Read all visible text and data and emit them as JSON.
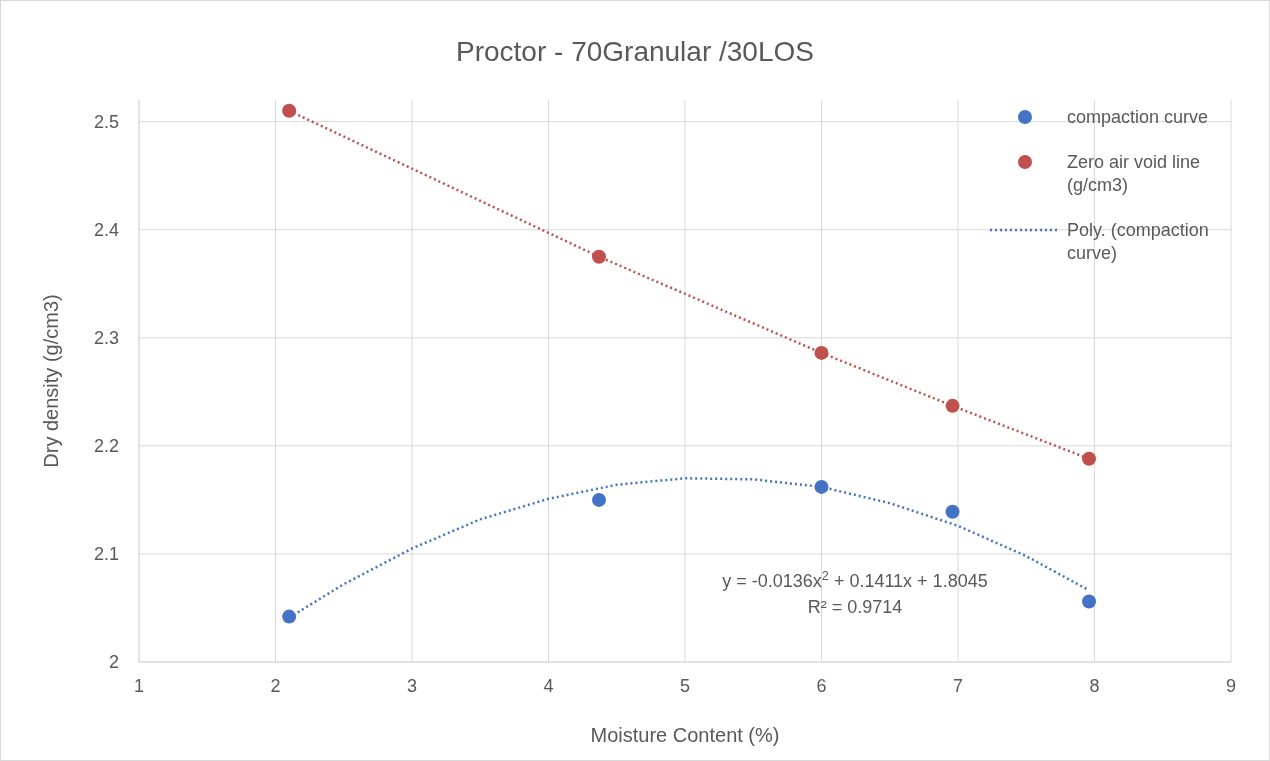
{
  "chart_data": {
    "type": "scatter",
    "title": "Proctor - 70Granular /30LOS",
    "xlabel": "Moisture Content (%)",
    "ylabel": "Dry density (g/cm3)",
    "xlim": [
      1,
      9
    ],
    "xticks": [
      1,
      2,
      3,
      4,
      5,
      6,
      7,
      8,
      9
    ],
    "ylim": [
      2,
      2.52
    ],
    "yticks": [
      2,
      2.1,
      2.2,
      2.3,
      2.4,
      2.5
    ],
    "grid": true,
    "legend": "right",
    "marker": "circle",
    "series": [
      {
        "name": "compaction curve",
        "color": "#4472c4",
        "x": [
          2.1,
          4.37,
          6.0,
          6.96,
          7.96
        ],
        "values": [
          2.042,
          2.15,
          2.162,
          2.139,
          2.056
        ]
      },
      {
        "name": "Zero air void line (g/cm3)",
        "type": "line",
        "color": "#c0504d",
        "line_style": "dotted",
        "x": [
          2.1,
          4.37,
          6.0,
          6.96,
          7.96
        ],
        "values": [
          2.51,
          2.375,
          2.286,
          2.237,
          2.188
        ]
      },
      {
        "name": "Poly. (compaction curve)",
        "type": "line",
        "color": "#4472c4",
        "line_style": "dotted",
        "marker": "none",
        "x": [
          2.1,
          2.5,
          3,
          3.5,
          4,
          4.5,
          5,
          5.5,
          6,
          6.5,
          7,
          7.5,
          7.95
        ],
        "values": [
          2.041,
          2.072,
          2.105,
          2.132,
          2.151,
          2.164,
          2.17,
          2.169,
          2.162,
          2.147,
          2.126,
          2.098,
          2.067
        ]
      }
    ],
    "annotations": [
      "y = -0.0136x$^{2}$ + 0.1411x + 1.8045",
      "R² = 0.9714"
    ]
  }
}
